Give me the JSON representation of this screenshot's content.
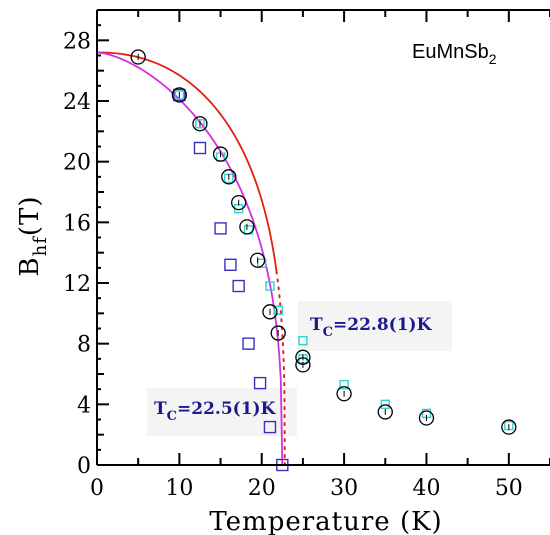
{
  "chart_data": {
    "type": "scatter",
    "title": "",
    "xlabel": "Temperature (K)",
    "ylabel_main": "B",
    "ylabel_sub": "hf",
    "ylabel_unit": "(T)",
    "xlim": [
      0,
      55
    ],
    "ylim": [
      0,
      30
    ],
    "x_ticks": [
      0,
      10,
      20,
      30,
      40,
      50
    ],
    "y_ticks": [
      0,
      4,
      8,
      12,
      16,
      20,
      24,
      28
    ],
    "annotations": {
      "compound": "EuMnSb",
      "compound_sub": "2",
      "tc1_main": "T",
      "tc1_sub": "C",
      "tc1_value": "=22.8(1)K",
      "tc2_main": "T",
      "tc2_sub": "C",
      "tc2_value": "=22.5(1)K"
    },
    "colors": {
      "circles": "#000000",
      "blue_squares": "#3b2fc0",
      "cyan_squares": "#33d0d0",
      "red_fit": "#e02010",
      "magenta_fit": "#d030e0"
    },
    "series": [
      {
        "marker": "circle",
        "points": [
          [
            5,
            26.9
          ],
          [
            10,
            24.4
          ],
          [
            12.5,
            22.5
          ],
          [
            15,
            20.5
          ],
          [
            16,
            19.0
          ],
          [
            17.2,
            17.3
          ],
          [
            18.2,
            15.7
          ],
          [
            19.5,
            13.5
          ],
          [
            21,
            10.1
          ],
          [
            22,
            8.7
          ],
          [
            25,
            7.1
          ],
          [
            25,
            6.6
          ],
          [
            30,
            4.7
          ],
          [
            35,
            3.5
          ],
          [
            40,
            3.1
          ],
          [
            50,
            2.5
          ]
        ]
      },
      {
        "marker": "square-blue",
        "points": [
          [
            10,
            24.4
          ],
          [
            12.5,
            20.9
          ],
          [
            15,
            15.6
          ],
          [
            16.2,
            13.2
          ],
          [
            17.2,
            11.8
          ],
          [
            18.4,
            8.0
          ],
          [
            19.8,
            5.4
          ],
          [
            21,
            2.5
          ],
          [
            22.5,
            0.0
          ]
        ]
      },
      {
        "marker": "square-cyan",
        "points": [
          [
            10,
            24.4
          ],
          [
            12.5,
            22.5
          ],
          [
            15,
            20.3
          ],
          [
            16,
            18.9
          ],
          [
            17.2,
            16.9
          ],
          [
            18.4,
            15.5
          ],
          [
            20,
            13.3
          ],
          [
            21,
            11.8
          ],
          [
            22,
            10.2
          ],
          [
            25,
            8.2
          ],
          [
            25,
            7.0
          ],
          [
            30,
            5.3
          ],
          [
            35,
            4.0
          ],
          [
            40,
            3.4
          ],
          [
            50,
            2.6
          ]
        ]
      },
      {
        "marker": "fit-red",
        "tc": 22.8,
        "b0": 27.2,
        "beta": 0.32,
        "a": 2.2
      },
      {
        "marker": "fit-magenta",
        "tc": 22.5,
        "b0": 27.2,
        "beta": 0.36,
        "a": 1.55
      }
    ]
  }
}
